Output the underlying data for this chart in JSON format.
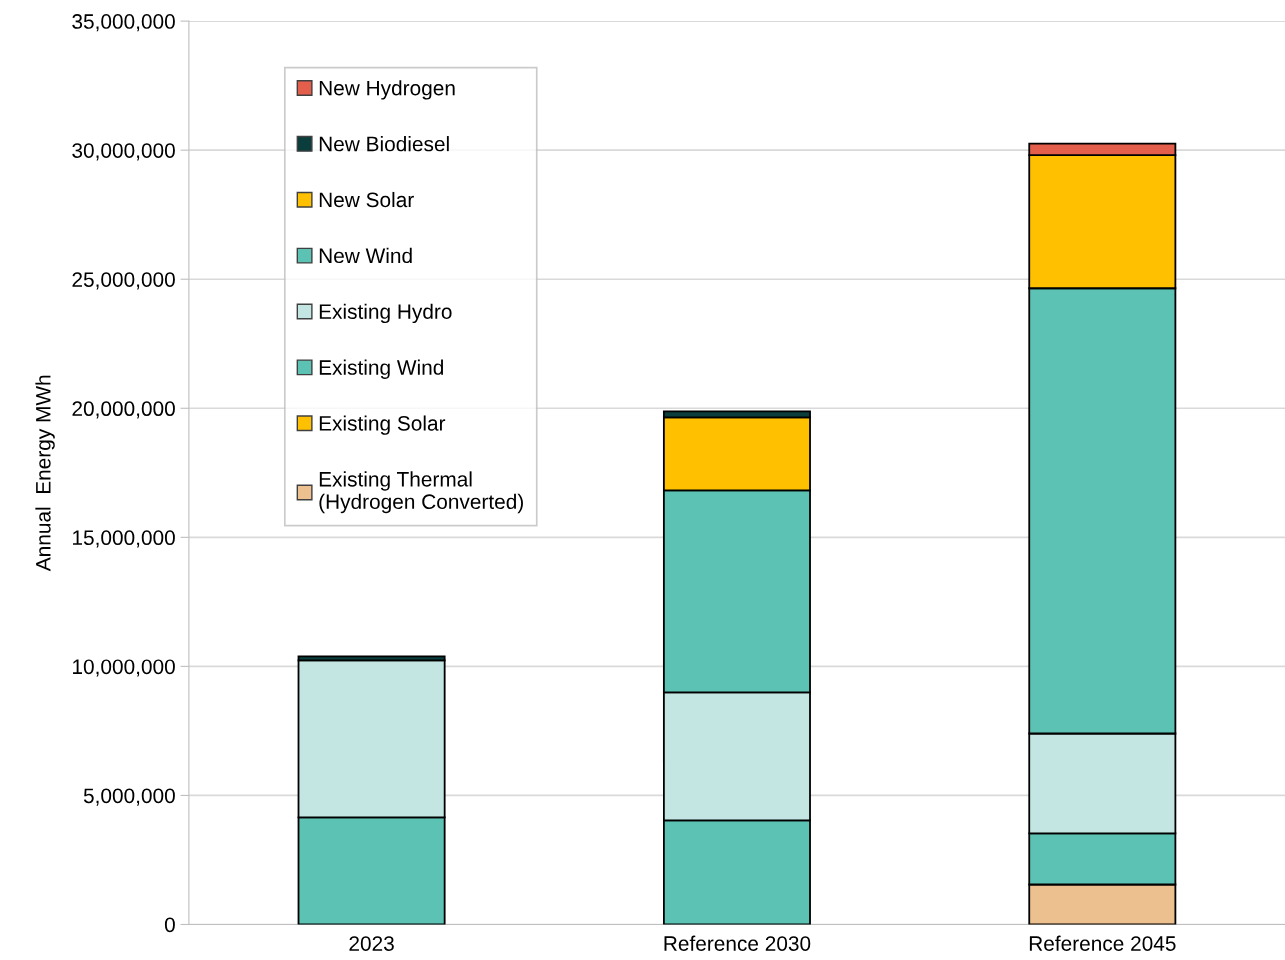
{
  "chart_data": {
    "type": "bar",
    "stacked": true,
    "ylabel": "Annual  Energy MWh",
    "categories": [
      "2023",
      "Reference 2030",
      "Reference 2045"
    ],
    "series": [
      {
        "name": "Existing Thermal\n(Hydrogen Converted)",
        "color": "#ecc18f",
        "values": [
          null,
          null,
          1550000
        ]
      },
      {
        "name": "Existing Solar",
        "color": "#ffc000",
        "values": [
          null,
          null,
          null
        ]
      },
      {
        "name": "Existing Wind",
        "color": "#5bc2b4",
        "values": [
          4150000,
          4030000,
          1980000
        ]
      },
      {
        "name": "Existing Hydro",
        "color": "#c3e6e2",
        "values": [
          6080000,
          4960000,
          3870000
        ]
      },
      {
        "name": "New Wind",
        "color": "#5bc2b4",
        "values": [
          null,
          7830000,
          17250000
        ]
      },
      {
        "name": "New Solar",
        "color": "#ffc000",
        "values": [
          null,
          2830000,
          5160000
        ]
      },
      {
        "name": "New Biodiesel",
        "color": "#0b3d3d",
        "values": [
          160000,
          230000,
          null
        ]
      },
      {
        "name": "New Hydrogen",
        "color": "#e45f4b",
        "values": [
          null,
          null,
          440000
        ]
      }
    ],
    "ylim": [
      0,
      35000000
    ],
    "yticks": [
      {
        "value": 0,
        "label": "0"
      },
      {
        "value": 5000000,
        "label": "5,000,000"
      },
      {
        "value": 10000000,
        "label": "10,000,000"
      },
      {
        "value": 15000000,
        "label": "15,000,000"
      },
      {
        "value": 20000000,
        "label": "20,000,000"
      },
      {
        "value": 25000000,
        "label": "25,000,000"
      },
      {
        "value": 30000000,
        "label": "30,000,000"
      },
      {
        "value": 35000000,
        "label": "35,000,000"
      }
    ],
    "grid": "y",
    "legend": "top left"
  }
}
